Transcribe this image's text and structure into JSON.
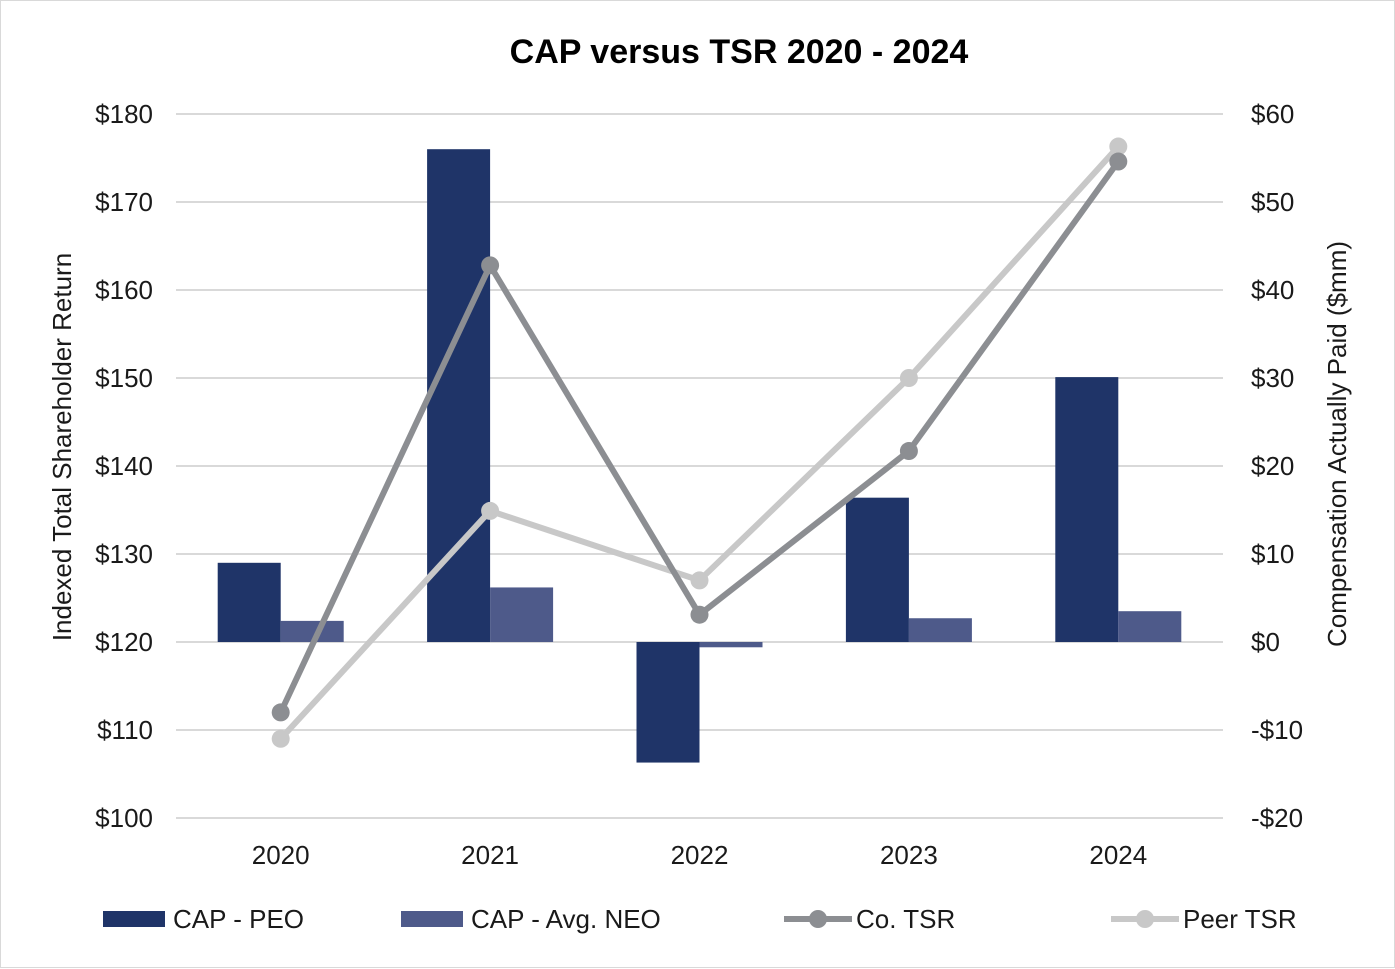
{
  "chart_data": {
    "type": "bar",
    "title": "CAP versus TSR 2020 - 2024",
    "categories": [
      "2020",
      "2021",
      "2022",
      "2023",
      "2024"
    ],
    "left_axis": {
      "label": "Indexed Total Shareholder Return",
      "range": [
        100,
        180
      ],
      "ticks": [
        100,
        110,
        120,
        130,
        140,
        150,
        160,
        170,
        180
      ],
      "tick_labels": [
        "$100",
        "$110",
        "$120",
        "$130",
        "$140",
        "$150",
        "$160",
        "$170",
        "$180"
      ]
    },
    "right_axis": {
      "label": "Compensation Actually Paid ($mm)",
      "range": [
        -20,
        60
      ],
      "ticks": [
        -20,
        -10,
        0,
        10,
        20,
        30,
        40,
        50,
        60
      ],
      "tick_labels": [
        "-$20",
        "-$10",
        "$0",
        "$10",
        "$20",
        "$30",
        "$40",
        "$50",
        "$60"
      ]
    },
    "series": [
      {
        "name": "CAP - PEO",
        "type": "bar",
        "axis": "right",
        "color": "#1f3468",
        "values": [
          9.0,
          56.0,
          -13.7,
          16.4,
          30.1
        ]
      },
      {
        "name": "CAP - Avg. NEO",
        "type": "bar",
        "axis": "right",
        "color": "#4e5a8a",
        "values": [
          2.4,
          6.2,
          -0.6,
          2.7,
          3.5
        ]
      },
      {
        "name": "Co. TSR",
        "type": "line",
        "axis": "left",
        "color": "#8c8e92",
        "values": [
          112.0,
          162.8,
          123.1,
          141.7,
          174.6
        ]
      },
      {
        "name": "Peer TSR",
        "type": "line",
        "axis": "left",
        "color": "#c8c8c8",
        "values": [
          109.0,
          134.9,
          127.0,
          150.0,
          176.3
        ]
      }
    ],
    "gridlines": true,
    "legend": "bottom"
  }
}
